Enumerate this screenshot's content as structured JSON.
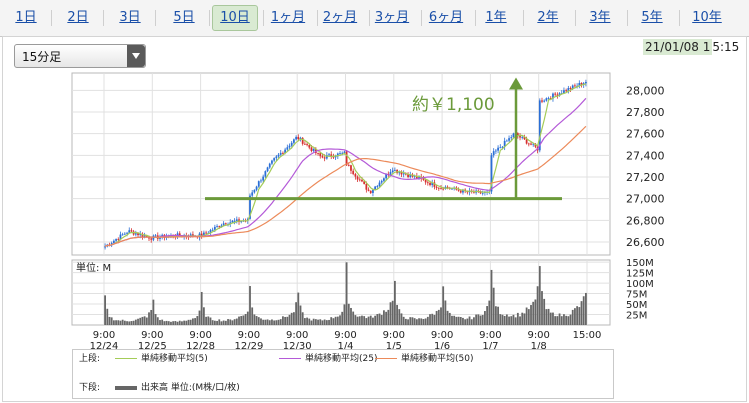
{
  "tabs": [
    {
      "label": "1日"
    },
    {
      "label": "2日"
    },
    {
      "label": "3日"
    },
    {
      "label": "5日"
    },
    {
      "label": "10日",
      "active": true
    },
    {
      "label": "1ヶ月"
    },
    {
      "label": "2ヶ月"
    },
    {
      "label": "3ヶ月"
    },
    {
      "label": "6ヶ月"
    },
    {
      "label": "1年"
    },
    {
      "label": "2年"
    },
    {
      "label": "3年"
    },
    {
      "label": "5年"
    },
    {
      "label": "10年"
    }
  ],
  "interval_select": {
    "value": "15分足"
  },
  "last_update": {
    "date": "21/01/08 1",
    "time": "5:15"
  },
  "legend": {
    "upper_label": "上段:",
    "lower_label": "下段:",
    "items": [
      {
        "label": "単純移動平均(5)",
        "color": "#a4cc58"
      },
      {
        "label": "単純移動平均(25)",
        "color": "#b45ad8"
      },
      {
        "label": "単純移動平均(50)",
        "color": "#ec8a5a"
      }
    ],
    "volume_item": {
      "label": "出来高 単位:(M株/口/枚)",
      "color": "#666666"
    }
  },
  "chart_data": {
    "type": "candlestick",
    "price_axis": {
      "ticks": [
        26600,
        26800,
        27000,
        27200,
        27400,
        27600,
        27800,
        28000
      ],
      "ylim": [
        26480,
        28160
      ]
    },
    "volume_axis": {
      "unit_label": "単位: M",
      "ticks_label": [
        "25M",
        "50M",
        "75M",
        "100M",
        "125M",
        "150M"
      ],
      "ticks": [
        25,
        50,
        75,
        100,
        125,
        150
      ],
      "ylim": [
        0,
        155
      ]
    },
    "x_labels": [
      {
        "time": "9:00",
        "date": "12/24"
      },
      {
        "time": "9:00",
        "date": "12/25"
      },
      {
        "time": "9:00",
        "date": "12/28"
      },
      {
        "time": "9:00",
        "date": "12/29"
      },
      {
        "time": "9:00",
        "date": "12/30"
      },
      {
        "time": "9:00",
        "date": "1/4"
      },
      {
        "time": "9:00",
        "date": "1/5"
      },
      {
        "time": "9:00",
        "date": "1/6"
      },
      {
        "time": "9:00",
        "date": "1/7"
      },
      {
        "time": "9:00",
        "date": "1/8"
      },
      {
        "time": "15:00",
        "date": ""
      }
    ],
    "session_close_anchors": [
      [
        26560,
        26700,
        26640
      ],
      [
        26640,
        26660,
        26660
      ],
      [
        26660,
        26780,
        26800
      ],
      [
        27030,
        27350,
        27560
      ],
      [
        27560,
        27380,
        27420
      ],
      [
        27320,
        27060,
        27280
      ],
      [
        27260,
        27190,
        27100
      ],
      [
        27110,
        27060,
        27050
      ],
      [
        27400,
        27600,
        27460
      ],
      [
        27900,
        27990,
        28080
      ]
    ],
    "volume_session_profile": [
      120,
      60,
      40,
      30,
      25,
      22,
      20,
      20,
      20,
      18,
      18,
      18,
      20,
      20,
      22,
      25,
      28,
      32,
      35,
      38,
      48,
      65
    ],
    "volume_session_scale": [
      0.55,
      0.45,
      0.6,
      0.7,
      0.65,
      1.05,
      0.8,
      0.85,
      1.25,
      1.3
    ],
    "annotation": {
      "text": "約￥1,100",
      "support_level": 27000,
      "arrow_from": 27000,
      "arrow_to": 28100,
      "color": "#6b9a3a"
    }
  }
}
